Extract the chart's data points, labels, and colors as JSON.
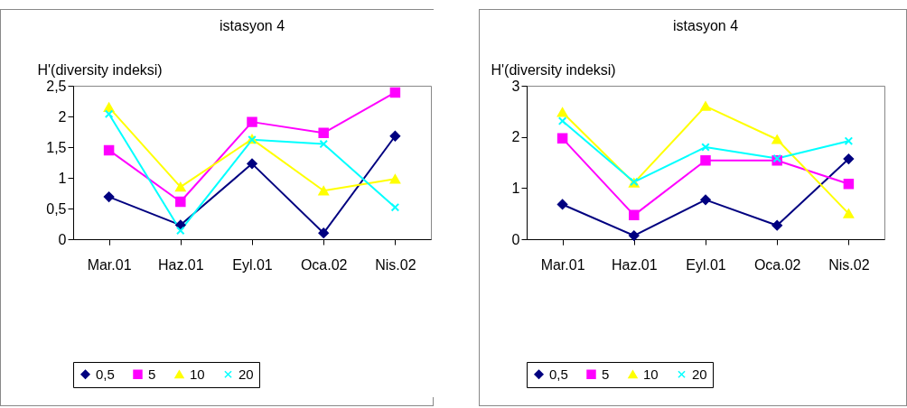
{
  "chart_data": [
    {
      "type": "line",
      "title": "istasyon 4",
      "ylabel": "H'(diversity indeksi)",
      "categories": [
        "Mar.01",
        "Haz.01",
        "Eyl.01",
        "Oca.02",
        "Nis.02"
      ],
      "ylim": [
        0,
        2.5
      ],
      "yticks": [
        0,
        {
          "value": 0.5,
          "label": "0,5"
        },
        1,
        {
          "value": 1.5,
          "label": "1,5"
        },
        2,
        {
          "value": 2.5,
          "label": "2,5"
        }
      ],
      "grid": false,
      "legend": "bottom",
      "series": [
        {
          "name": "0,5",
          "color": "#000080",
          "marker": "diamond",
          "values": [
            0.69,
            0.23,
            1.23,
            0.1,
            1.68
          ]
        },
        {
          "name": "5",
          "color": "#ff00ff",
          "marker": "square",
          "values": [
            1.45,
            0.61,
            1.91,
            1.73,
            2.39
          ]
        },
        {
          "name": "10",
          "color": "#ffff00",
          "marker": "triangle",
          "values": [
            2.15,
            0.85,
            1.63,
            0.79,
            0.98
          ]
        },
        {
          "name": "20",
          "color": "#00ffff",
          "marker": "cross",
          "values": [
            2.04,
            0.14,
            1.62,
            1.55,
            0.52
          ]
        }
      ]
    },
    {
      "type": "line",
      "title": "istasyon 4",
      "ylabel": "H'(diversity indeksi)",
      "categories": [
        "Mar.01",
        "Haz.01",
        "Eyl.01",
        "Oca.02",
        "Nis.02"
      ],
      "ylim": [
        0,
        3
      ],
      "yticks": [
        0,
        1,
        2,
        3
      ],
      "grid": false,
      "legend": "bottom",
      "series": [
        {
          "name": "0,5",
          "color": "#000080",
          "marker": "diamond",
          "values": [
            0.68,
            0.07,
            0.77,
            0.27,
            1.57
          ]
        },
        {
          "name": "5",
          "color": "#ff00ff",
          "marker": "square",
          "values": [
            1.97,
            0.47,
            1.54,
            1.54,
            1.08
          ]
        },
        {
          "name": "10",
          "color": "#ffff00",
          "marker": "triangle",
          "values": [
            2.48,
            1.1,
            2.6,
            1.95,
            0.5
          ]
        },
        {
          "name": "20",
          "color": "#00ffff",
          "marker": "cross",
          "values": [
            2.31,
            1.12,
            1.8,
            1.58,
            1.92
          ]
        }
      ]
    }
  ]
}
